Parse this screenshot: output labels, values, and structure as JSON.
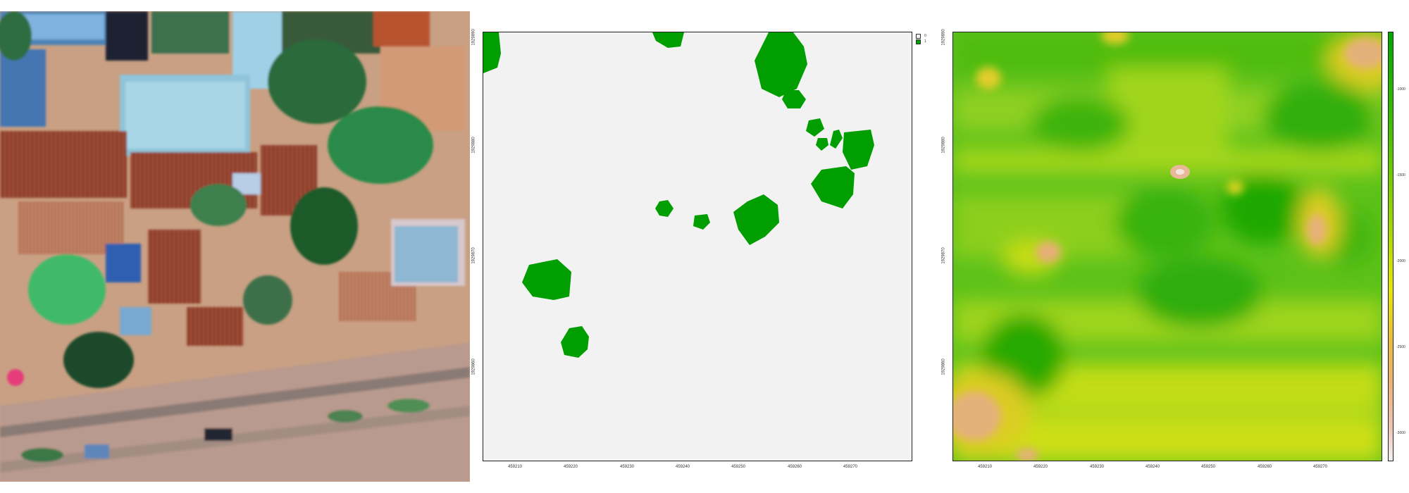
{
  "panels": {
    "aerial": {},
    "classification": {
      "legend": [
        {
          "label": "0",
          "color": "#f2f2f2"
        },
        {
          "label": "1",
          "color": "#009e00"
        }
      ],
      "x_ticks": [
        "459210",
        "459220",
        "459230",
        "459240",
        "459250",
        "459260",
        "459270"
      ],
      "y_ticks": [
        "1929890",
        "1929880",
        "1929870",
        "1929860"
      ]
    },
    "continuous": {
      "x_ticks": [
        "459210",
        "459220",
        "459230",
        "459240",
        "459250",
        "459260",
        "459270"
      ],
      "y_ticks": [
        "1929890",
        "1929880",
        "1929870",
        "1929860"
      ],
      "colorbar_ticks": [
        "-1000",
        "-1500",
        "-2000",
        "-2500",
        "-3000"
      ],
      "colorbar_colors": [
        "#00a600",
        "#8bd000",
        "#e6e600",
        "#ecb176",
        "#f2f2f2"
      ]
    }
  }
}
